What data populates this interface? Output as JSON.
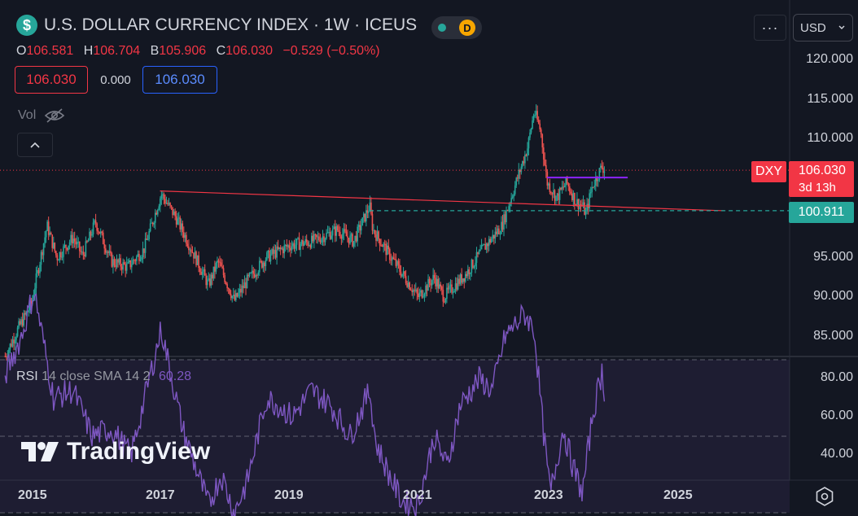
{
  "header": {
    "title": "U.S. DOLLAR CURRENCY INDEX · 1W · ICEUS",
    "market_status_badge": "D",
    "more_label": "···",
    "currency_label": "USD",
    "icons": [
      "dollar-icon",
      "eye-off-icon",
      "chevron-up-icon",
      "chevron-down-icon",
      "gear-icon"
    ]
  },
  "ohlc": {
    "o_key": "O",
    "o_val": "106.581",
    "h_key": "H",
    "h_val": "106.704",
    "l_key": "B",
    "l_val": "105.906",
    "c_key": "C",
    "c_val": "106.030",
    "change": "−0.529 (−0.50%)"
  },
  "boxes": {
    "sell": "106.030",
    "spread": "0.000",
    "buy": "106.030"
  },
  "vol": {
    "label": "Vol"
  },
  "price_scale": {
    "labels": [
      "120.000",
      "115.000",
      "110.000",
      "95.000",
      "90.000",
      "85.000"
    ]
  },
  "tags": {
    "symbol": "DXY",
    "last_price": "106.030",
    "countdown": "3d 13h",
    "level": "100.911"
  },
  "rsi": {
    "name": "RSI",
    "params": "14 close SMA 14 2",
    "value": "60.28",
    "scale_labels": [
      "80.00",
      "60.00",
      "40.00"
    ]
  },
  "time_axis": {
    "labels": [
      "2015",
      "2017",
      "2019",
      "2021",
      "2023",
      "2025"
    ]
  },
  "logo": {
    "text": "TradingView"
  },
  "colors": {
    "up": "#26a69a",
    "down": "#ef5350",
    "rsi": "#7e57c2",
    "level": "#26a69a",
    "trend": "#f23645",
    "band": "#7e57c2",
    "background": "#131722"
  },
  "chart_data": [
    {
      "type": "candlestick",
      "title": "U.S. DOLLAR CURRENCY INDEX · 1W · ICEUS",
      "x_ticks": [
        "2015",
        "2017",
        "2019",
        "2021",
        "2023",
        "2025"
      ],
      "ylim": [
        82,
        122
      ],
      "y_ticks": [
        85,
        90,
        95,
        100,
        105,
        110,
        115,
        120
      ],
      "weekly_close_anchors": [
        {
          "t": 2014.55,
          "v": 82.5
        },
        {
          "t": 2014.75,
          "v": 86.0
        },
        {
          "t": 2014.95,
          "v": 89.0
        },
        {
          "t": 2015.2,
          "v": 99.0
        },
        {
          "t": 2015.35,
          "v": 95.0
        },
        {
          "t": 2015.6,
          "v": 97.5
        },
        {
          "t": 2015.75,
          "v": 95.2
        },
        {
          "t": 2015.95,
          "v": 99.5
        },
        {
          "t": 2016.2,
          "v": 94.5
        },
        {
          "t": 2016.45,
          "v": 93.8
        },
        {
          "t": 2016.7,
          "v": 96.0
        },
        {
          "t": 2016.97,
          "v": 103.0
        },
        {
          "t": 2017.2,
          "v": 100.0
        },
        {
          "t": 2017.5,
          "v": 95.0
        },
        {
          "t": 2017.7,
          "v": 91.5
        },
        {
          "t": 2017.85,
          "v": 94.5
        },
        {
          "t": 2018.1,
          "v": 89.5
        },
        {
          "t": 2018.3,
          "v": 92.0
        },
        {
          "t": 2018.6,
          "v": 95.0
        },
        {
          "t": 2018.95,
          "v": 96.5
        },
        {
          "t": 2019.3,
          "v": 97.0
        },
        {
          "t": 2019.7,
          "v": 98.5
        },
        {
          "t": 2019.95,
          "v": 97.0
        },
        {
          "t": 2020.2,
          "v": 101.5
        },
        {
          "t": 2020.25,
          "v": 98.5
        },
        {
          "t": 2020.45,
          "v": 96.0
        },
        {
          "t": 2020.7,
          "v": 93.0
        },
        {
          "t": 2020.95,
          "v": 90.0
        },
        {
          "t": 2021.2,
          "v": 92.5
        },
        {
          "t": 2021.35,
          "v": 90.0
        },
        {
          "t": 2021.7,
          "v": 93.0
        },
        {
          "t": 2021.95,
          "v": 96.0
        },
        {
          "t": 2022.25,
          "v": 99.0
        },
        {
          "t": 2022.45,
          "v": 104.0
        },
        {
          "t": 2022.65,
          "v": 109.0
        },
        {
          "t": 2022.75,
          "v": 113.5
        },
        {
          "t": 2022.85,
          "v": 111.0
        },
        {
          "t": 2022.95,
          "v": 104.5
        },
        {
          "t": 2023.1,
          "v": 102.5
        },
        {
          "t": 2023.25,
          "v": 104.5
        },
        {
          "t": 2023.4,
          "v": 102.0
        },
        {
          "t": 2023.5,
          "v": 101.5
        },
        {
          "t": 2023.55,
          "v": 100.5
        },
        {
          "t": 2023.65,
          "v": 104.0
        },
        {
          "t": 2023.8,
          "v": 106.5
        },
        {
          "t": 2023.85,
          "v": 106.0
        }
      ],
      "drawings": {
        "trendline": [
          {
            "t": 2016.95,
            "v": 103.4
          },
          {
            "t": 2025.7,
            "v": 100.9
          }
        ],
        "horizontal_level": {
          "v": 100.911,
          "from": 2020.2
        },
        "resistance_segment": {
          "v": 105.1,
          "from": 2022.95,
          "to": 2024.2
        },
        "last_price_line": {
          "v": 106.03
        }
      }
    },
    {
      "type": "line",
      "name": "RSI",
      "params": "14 close SMA 14 2",
      "ylim": [
        24,
        88
      ],
      "bands": [
        70,
        50,
        30
      ],
      "y_ticks": [
        40,
        60,
        80
      ],
      "anchors": [
        {
          "t": 2014.55,
          "v": 66
        },
        {
          "t": 2014.8,
          "v": 76
        },
        {
          "t": 2015.0,
          "v": 88
        },
        {
          "t": 2015.3,
          "v": 60
        },
        {
          "t": 2015.6,
          "v": 62
        },
        {
          "t": 2015.9,
          "v": 50
        },
        {
          "t": 2016.2,
          "v": 52
        },
        {
          "t": 2016.5,
          "v": 45
        },
        {
          "t": 2016.97,
          "v": 78
        },
        {
          "t": 2017.3,
          "v": 52
        },
        {
          "t": 2017.7,
          "v": 32
        },
        {
          "t": 2017.9,
          "v": 40
        },
        {
          "t": 2018.1,
          "v": 30
        },
        {
          "t": 2018.3,
          "v": 38
        },
        {
          "t": 2018.6,
          "v": 60
        },
        {
          "t": 2018.8,
          "v": 58
        },
        {
          "t": 2019.0,
          "v": 55
        },
        {
          "t": 2019.3,
          "v": 62
        },
        {
          "t": 2019.6,
          "v": 58
        },
        {
          "t": 2019.9,
          "v": 50
        },
        {
          "t": 2020.2,
          "v": 62
        },
        {
          "t": 2020.3,
          "v": 48
        },
        {
          "t": 2020.5,
          "v": 40
        },
        {
          "t": 2020.7,
          "v": 33
        },
        {
          "t": 2020.95,
          "v": 32
        },
        {
          "t": 2021.2,
          "v": 50
        },
        {
          "t": 2021.4,
          "v": 42
        },
        {
          "t": 2021.6,
          "v": 58
        },
        {
          "t": 2021.9,
          "v": 65
        },
        {
          "t": 2022.1,
          "v": 62
        },
        {
          "t": 2022.3,
          "v": 76
        },
        {
          "t": 2022.6,
          "v": 82
        },
        {
          "t": 2022.75,
          "v": 78
        },
        {
          "t": 2022.9,
          "v": 50
        },
        {
          "t": 2023.0,
          "v": 35
        },
        {
          "t": 2023.2,
          "v": 52
        },
        {
          "t": 2023.35,
          "v": 42
        },
        {
          "t": 2023.5,
          "v": 35
        },
        {
          "t": 2023.65,
          "v": 55
        },
        {
          "t": 2023.8,
          "v": 67
        },
        {
          "t": 2023.85,
          "v": 60.28
        }
      ]
    }
  ]
}
